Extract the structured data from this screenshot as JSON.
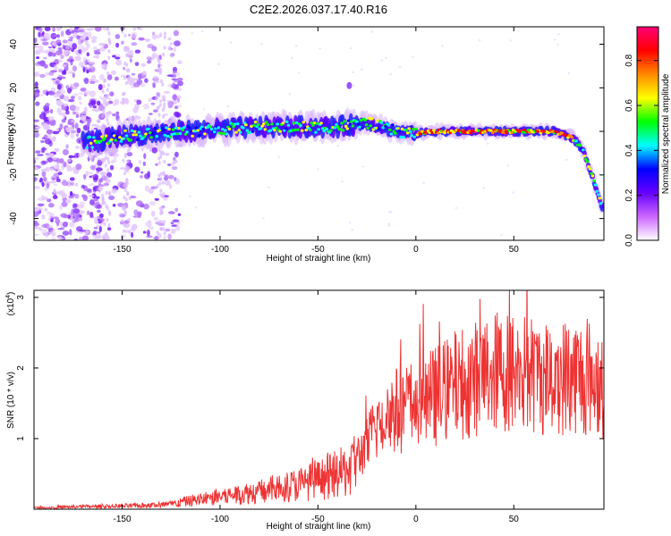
{
  "chart_data": [
    {
      "type": "heatmap",
      "title": "C2E2.2026.037.17.40.R16",
      "xlabel": "Height of straight line (km)",
      "ylabel": "Frequency (Hz)",
      "xlim": [
        -195,
        96
      ],
      "ylim": [
        -50,
        48
      ],
      "xticks": [
        -150,
        -100,
        -50,
        0,
        50
      ],
      "yticks": [
        -40,
        -20,
        0,
        20,
        40
      ],
      "colorbar": {
        "label": "Normalized spectral amplitude",
        "range": [
          0,
          0.95
        ],
        "ticks": [
          0.0,
          0.2,
          0.4,
          0.6,
          0.8
        ],
        "colors": [
          "#ffffff",
          "#cc66ff",
          "#6600ff",
          "#0000ff",
          "#00ffff",
          "#00ff00",
          "#ffff00",
          "#ff8800",
          "#ff0000",
          "#ff0077"
        ]
      },
      "ridge": {
        "description_points_x": [
          -165,
          -150,
          -120,
          -80,
          -40,
          -25,
          -10,
          0,
          10,
          50,
          70,
          80,
          85,
          90,
          95
        ],
        "frequency_y": [
          -5,
          -2,
          0,
          2,
          2,
          4,
          0,
          -1,
          0,
          0,
          0,
          -3,
          -8,
          -20,
          -35
        ]
      }
    },
    {
      "type": "line",
      "title": "",
      "xlabel": "Height of straight line (km)",
      "ylabel": "SNR (10 * v/v)",
      "multiplier_label": "(x10",
      "multiplier_exp": "4",
      "multiplier_close": ")",
      "xlim": [
        -195,
        96
      ],
      "ylim": [
        0,
        3.1
      ],
      "xticks": [
        -150,
        -100,
        -50,
        0,
        50
      ],
      "yticks": [
        1,
        2,
        3
      ],
      "color": "#ee3333",
      "series": [
        {
          "name": "SNR",
          "x": [
            -195,
            -180,
            -160,
            -140,
            -125,
            -115,
            -100,
            -80,
            -60,
            -45,
            -35,
            -25,
            -20,
            -15,
            -10,
            -5,
            0,
            10,
            20,
            30,
            40,
            50,
            60,
            70,
            80,
            90,
            96
          ],
          "y": [
            0.02,
            0.03,
            0.04,
            0.05,
            0.07,
            0.12,
            0.18,
            0.25,
            0.35,
            0.45,
            0.55,
            0.9,
            1.2,
            1.35,
            1.4,
            1.45,
            1.5,
            1.6,
            1.75,
            1.85,
            1.95,
            1.95,
            1.9,
            1.85,
            1.9,
            1.85,
            1.8
          ]
        }
      ]
    }
  ]
}
